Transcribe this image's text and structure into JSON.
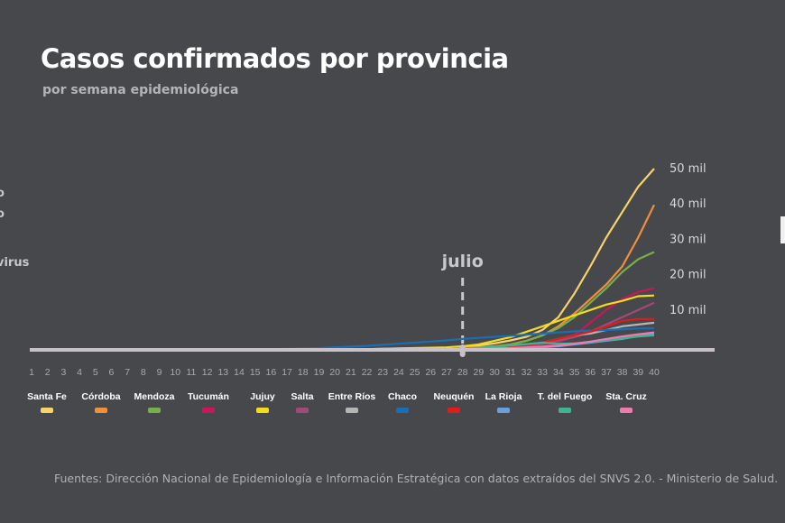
{
  "header": {
    "title": "Casos confirmados por provincia",
    "subtitle": "por semana epidemiológica"
  },
  "cut_off_text": [
    "o",
    "o",
    "virus"
  ],
  "source": "Fuentes: Dirección Nacional de Epidemiología e Información Estratégica con datos extraídos del SNVS 2.0. - Ministerio de Salud.",
  "chart_data": {
    "type": "line",
    "title": "Casos confirmados por provincia",
    "subtitle": "por semana epidemiológica",
    "xlabel": "",
    "ylabel": "",
    "x": [
      1,
      2,
      3,
      4,
      5,
      6,
      7,
      8,
      9,
      10,
      11,
      12,
      13,
      14,
      15,
      16,
      17,
      18,
      19,
      20,
      21,
      22,
      23,
      24,
      25,
      26,
      27,
      28,
      29,
      30,
      31,
      32,
      33,
      34,
      35,
      36,
      37,
      38,
      39,
      40
    ],
    "ylim": [
      0,
      50000
    ],
    "y_ticks": [
      {
        "value": 10000,
        "label": "10 mil"
      },
      {
        "value": 20000,
        "label": "20 mil"
      },
      {
        "value": 30000,
        "label": "30 mil"
      },
      {
        "value": 40000,
        "label": "40 mil"
      },
      {
        "value": 50000,
        "label": "50 mil"
      }
    ],
    "annotation": {
      "label": "julio",
      "x": 28
    },
    "grid": false,
    "legend_position": "bottom",
    "series": [
      {
        "name": "Santa Fe",
        "color": "#f7d36b",
        "values": [
          0,
          0,
          0,
          0,
          0,
          0,
          0,
          0,
          0,
          0,
          0,
          0,
          0,
          0,
          0,
          100,
          100,
          100,
          100,
          100,
          200,
          200,
          300,
          300,
          400,
          500,
          600,
          800,
          1200,
          1800,
          2600,
          3600,
          5500,
          9000,
          15500,
          23000,
          31000,
          38000,
          45000,
          50000
        ]
      },
      {
        "name": "Córdoba",
        "color": "#f0913a",
        "values": [
          0,
          0,
          0,
          0,
          0,
          0,
          0,
          0,
          0,
          0,
          0,
          0,
          0,
          0,
          0,
          0,
          0,
          0,
          100,
          100,
          100,
          100,
          200,
          200,
          300,
          300,
          400,
          500,
          700,
          1000,
          1500,
          2500,
          4000,
          6500,
          10000,
          14000,
          18000,
          23000,
          31000,
          40000
        ]
      },
      {
        "name": "Mendoza",
        "color": "#76b04a",
        "values": [
          0,
          0,
          0,
          0,
          0,
          0,
          0,
          0,
          0,
          0,
          0,
          0,
          0,
          0,
          0,
          0,
          0,
          0,
          0,
          0,
          100,
          100,
          100,
          100,
          200,
          200,
          300,
          400,
          600,
          900,
          1500,
          2500,
          4000,
          6000,
          9000,
          13000,
          17000,
          21500,
          25000,
          27000
        ]
      },
      {
        "name": "Tucumán",
        "color": "#c8175a",
        "values": [
          0,
          0,
          0,
          0,
          0,
          0,
          0,
          0,
          0,
          0,
          0,
          0,
          0,
          0,
          0,
          0,
          0,
          0,
          0,
          0,
          0,
          0,
          0,
          100,
          100,
          100,
          200,
          200,
          300,
          400,
          500,
          600,
          900,
          2000,
          4000,
          7500,
          11000,
          14000,
          16000,
          17000
        ]
      },
      {
        "name": "Jujuy",
        "color": "#f2dc1b",
        "values": [
          0,
          0,
          0,
          0,
          0,
          0,
          0,
          0,
          0,
          0,
          0,
          0,
          0,
          0,
          0,
          100,
          100,
          100,
          100,
          100,
          200,
          200,
          300,
          400,
          500,
          600,
          700,
          1000,
          1500,
          2500,
          3500,
          5000,
          6500,
          8000,
          9500,
          11000,
          12500,
          13500,
          14800,
          15000
        ]
      },
      {
        "name": "Salta",
        "color": "#a04a7a",
        "values": [
          0,
          0,
          0,
          0,
          0,
          0,
          0,
          0,
          0,
          0,
          0,
          0,
          0,
          0,
          0,
          0,
          0,
          0,
          0,
          0,
          0,
          0,
          100,
          100,
          100,
          200,
          200,
          300,
          400,
          600,
          900,
          1200,
          1600,
          2500,
          3500,
          5000,
          7000,
          9000,
          11000,
          13000
        ]
      },
      {
        "name": "Entre Ríos",
        "color": "#b5b5b5",
        "values": [
          0,
          0,
          0,
          0,
          0,
          0,
          0,
          0,
          0,
          0,
          0,
          0,
          0,
          0,
          0,
          0,
          0,
          0,
          0,
          0,
          0,
          0,
          100,
          100,
          100,
          200,
          200,
          300,
          500,
          700,
          1000,
          1500,
          2000,
          3000,
          4000,
          4500,
          5500,
          6500,
          7000,
          7500
        ]
      },
      {
        "name": "Chaco",
        "color": "#1a6fb3",
        "values": [
          0,
          0,
          0,
          0,
          0,
          0,
          0,
          0,
          0,
          0,
          0,
          0,
          0,
          0,
          100,
          200,
          300,
          400,
          500,
          700,
          900,
          1100,
          1400,
          1700,
          2000,
          2300,
          2600,
          3000,
          3300,
          3600,
          3900,
          4200,
          4500,
          4800,
          5100,
          5300,
          5500,
          5700,
          5900,
          6000
        ]
      },
      {
        "name": "Neuquén",
        "color": "#e21b1b",
        "values": [
          0,
          0,
          0,
          0,
          0,
          0,
          0,
          0,
          0,
          0,
          0,
          0,
          0,
          0,
          0,
          0,
          0,
          0,
          0,
          0,
          0,
          0,
          0,
          0,
          100,
          100,
          200,
          300,
          400,
          600,
          900,
          1300,
          2000,
          3000,
          4000,
          5000,
          6500,
          8000,
          8500,
          8500
        ]
      },
      {
        "name": "La Rioja",
        "color": "#6a9fd8",
        "values": [
          0,
          0,
          0,
          0,
          0,
          0,
          0,
          0,
          0,
          0,
          0,
          0,
          0,
          0,
          0,
          0,
          0,
          0,
          0,
          0,
          0,
          0,
          0,
          0,
          0,
          0,
          100,
          100,
          200,
          300,
          400,
          500,
          700,
          1000,
          1500,
          2000,
          2500,
          3000,
          3800,
          4300
        ]
      },
      {
        "name": "T. del Fuego",
        "color": "#3fb48f",
        "values": [
          0,
          0,
          0,
          0,
          0,
          0,
          0,
          0,
          0,
          0,
          0,
          0,
          0,
          0,
          0,
          0,
          0,
          0,
          0,
          0,
          0,
          0,
          0,
          0,
          100,
          100,
          200,
          300,
          500,
          800,
          1200,
          1600,
          2000,
          1700,
          1800,
          2200,
          2700,
          3200,
          3700,
          4000
        ]
      },
      {
        "name": "Sta. Cruz",
        "color": "#f07ab0",
        "values": [
          0,
          0,
          0,
          0,
          0,
          0,
          0,
          0,
          0,
          0,
          0,
          0,
          0,
          0,
          0,
          0,
          0,
          0,
          0,
          0,
          0,
          0,
          0,
          0,
          0,
          100,
          100,
          200,
          300,
          400,
          500,
          700,
          900,
          1200,
          1700,
          2300,
          3000,
          3700,
          4300,
          4800
        ]
      }
    ]
  }
}
